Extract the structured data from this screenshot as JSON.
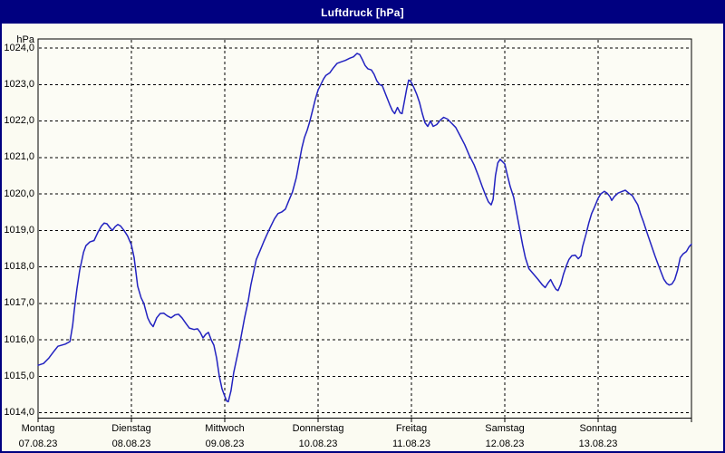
{
  "window": {
    "title": "Luftdruck [hPa]"
  },
  "colors": {
    "titlebar_bg": "#000080",
    "titlebar_text": "#ffffff",
    "window_bg": "#fbfbf2",
    "plot_bg": "#fcfcf5",
    "frame": "#000000",
    "grid": "#000000",
    "text": "#000000",
    "line": "#2222c0"
  },
  "chart_data": {
    "type": "line",
    "title": "Luftdruck [hPa]",
    "ylabel": "hPa",
    "ylim": [
      1014,
      1024
    ],
    "y_tick_step": 1,
    "y_ticks": [
      {
        "v": 1024,
        "label": "1024,0"
      },
      {
        "v": 1023,
        "label": "1023,0"
      },
      {
        "v": 1022,
        "label": "1022,0"
      },
      {
        "v": 1021,
        "label": "1021,0"
      },
      {
        "v": 1020,
        "label": "1020,0"
      },
      {
        "v": 1019,
        "label": "1019,0"
      },
      {
        "v": 1018,
        "label": "1018,0"
      },
      {
        "v": 1017,
        "label": "1017,0"
      },
      {
        "v": 1016,
        "label": "1016,0"
      },
      {
        "v": 1015,
        "label": "1015,0"
      },
      {
        "v": 1014,
        "label": "1014,0"
      }
    ],
    "x_days": [
      {
        "name": "Montag",
        "date": "07.08.23"
      },
      {
        "name": "Dienstag",
        "date": "08.08.23"
      },
      {
        "name": "Mittwoch",
        "date": "09.08.23"
      },
      {
        "name": "Donnerstag",
        "date": "10.08.23"
      },
      {
        "name": "Freitag",
        "date": "11.08.23"
      },
      {
        "name": "Samstag",
        "date": "12.08.23"
      },
      {
        "name": "Sonntag",
        "date": "13.08.23"
      }
    ],
    "hours_per_day": 24,
    "x_range_hours": [
      0,
      168
    ],
    "grid": "dashed",
    "legend": "none",
    "series": [
      {
        "name": "Luftdruck",
        "unit": "hPa",
        "color": "#2222c0",
        "points": [
          [
            0,
            1015.3
          ],
          [
            1.4,
            1015.35
          ],
          [
            2.8,
            1015.5
          ],
          [
            4.2,
            1015.7
          ],
          [
            5.1,
            1015.82
          ],
          [
            7,
            1015.88
          ],
          [
            8.2,
            1015.95
          ],
          [
            8.9,
            1016.4
          ],
          [
            9.3,
            1016.8
          ],
          [
            10,
            1017.4
          ],
          [
            10.7,
            1017.9
          ],
          [
            11.7,
            1018.4
          ],
          [
            12.3,
            1018.58
          ],
          [
            13.3,
            1018.68
          ],
          [
            14.4,
            1018.72
          ],
          [
            15.4,
            1018.95
          ],
          [
            16.3,
            1019.12
          ],
          [
            17,
            1019.2
          ],
          [
            17.7,
            1019.18
          ],
          [
            18.4,
            1019.08
          ],
          [
            19.1,
            1019.0
          ],
          [
            19.8,
            1019.1
          ],
          [
            20.5,
            1019.16
          ],
          [
            21.2,
            1019.12
          ],
          [
            22.1,
            1019.0
          ],
          [
            23,
            1018.85
          ],
          [
            24,
            1018.6
          ],
          [
            24.7,
            1018.25
          ],
          [
            25.6,
            1017.47
          ],
          [
            26.5,
            1017.15
          ],
          [
            27.2,
            1017.0
          ],
          [
            28.2,
            1016.6
          ],
          [
            28.9,
            1016.45
          ],
          [
            29.6,
            1016.36
          ],
          [
            30.5,
            1016.6
          ],
          [
            31.4,
            1016.72
          ],
          [
            32.3,
            1016.73
          ],
          [
            33.3,
            1016.65
          ],
          [
            34.2,
            1016.6
          ],
          [
            35.2,
            1016.68
          ],
          [
            36.1,
            1016.7
          ],
          [
            37,
            1016.6
          ],
          [
            38,
            1016.45
          ],
          [
            38.9,
            1016.32
          ],
          [
            40.1,
            1016.28
          ],
          [
            41,
            1016.3
          ],
          [
            41.7,
            1016.2
          ],
          [
            42.4,
            1016.05
          ],
          [
            43.1,
            1016.15
          ],
          [
            43.8,
            1016.2
          ],
          [
            44.5,
            1016.0
          ],
          [
            45.2,
            1015.85
          ],
          [
            45.9,
            1015.5
          ],
          [
            46.6,
            1015.0
          ],
          [
            47.3,
            1014.65
          ],
          [
            48,
            1014.45
          ],
          [
            48.5,
            1014.32
          ],
          [
            48.9,
            1014.3
          ],
          [
            49.6,
            1014.6
          ],
          [
            50.3,
            1015.1
          ],
          [
            51,
            1015.45
          ],
          [
            51.7,
            1015.8
          ],
          [
            52.4,
            1016.2
          ],
          [
            53.1,
            1016.6
          ],
          [
            54,
            1017.05
          ],
          [
            54.7,
            1017.5
          ],
          [
            55.4,
            1017.85
          ],
          [
            56.1,
            1018.2
          ],
          [
            57,
            1018.42
          ],
          [
            58,
            1018.68
          ],
          [
            58.9,
            1018.9
          ],
          [
            59.8,
            1019.1
          ],
          [
            60.8,
            1019.32
          ],
          [
            61.7,
            1019.46
          ],
          [
            62.6,
            1019.5
          ],
          [
            63.6,
            1019.58
          ],
          [
            64.5,
            1019.82
          ],
          [
            65.4,
            1020.05
          ],
          [
            66.4,
            1020.45
          ],
          [
            67.1,
            1020.85
          ],
          [
            67.8,
            1021.25
          ],
          [
            68.5,
            1021.55
          ],
          [
            69.2,
            1021.75
          ],
          [
            69.9,
            1022.0
          ],
          [
            70.6,
            1022.3
          ],
          [
            71.3,
            1022.6
          ],
          [
            72,
            1022.85
          ],
          [
            72.7,
            1023.0
          ],
          [
            73.4,
            1023.15
          ],
          [
            74,
            1023.25
          ],
          [
            75,
            1023.32
          ],
          [
            75.9,
            1023.45
          ],
          [
            76.9,
            1023.58
          ],
          [
            77.9,
            1023.62
          ],
          [
            79,
            1023.66
          ],
          [
            80.1,
            1023.72
          ],
          [
            81.1,
            1023.76
          ],
          [
            82,
            1023.85
          ],
          [
            82.7,
            1023.82
          ],
          [
            83.4,
            1023.68
          ],
          [
            84.1,
            1023.52
          ],
          [
            84.8,
            1023.43
          ],
          [
            85.7,
            1023.4
          ],
          [
            86.4,
            1023.28
          ],
          [
            87.1,
            1023.1
          ],
          [
            87.8,
            1023.0
          ],
          [
            88.5,
            1022.97
          ],
          [
            89.4,
            1022.72
          ],
          [
            90.4,
            1022.45
          ],
          [
            91.1,
            1022.28
          ],
          [
            91.7,
            1022.2
          ],
          [
            92.4,
            1022.37
          ],
          [
            93.1,
            1022.22
          ],
          [
            93.6,
            1022.2
          ],
          [
            94.3,
            1022.6
          ],
          [
            94.8,
            1022.9
          ],
          [
            95.3,
            1023.12
          ],
          [
            95.7,
            1023.1
          ],
          [
            96,
            1023.05
          ],
          [
            96.7,
            1022.9
          ],
          [
            97.4,
            1022.72
          ],
          [
            98.1,
            1022.5
          ],
          [
            98.8,
            1022.2
          ],
          [
            99.5,
            1021.95
          ],
          [
            100.2,
            1021.85
          ],
          [
            100.9,
            1022.0
          ],
          [
            101.6,
            1021.85
          ],
          [
            102.5,
            1021.9
          ],
          [
            103.4,
            1022.02
          ],
          [
            104.3,
            1022.1
          ],
          [
            105.3,
            1022.05
          ],
          [
            106.2,
            1021.95
          ],
          [
            107.4,
            1021.82
          ],
          [
            108.5,
            1021.6
          ],
          [
            109.7,
            1021.35
          ],
          [
            110.9,
            1021.05
          ],
          [
            112.1,
            1020.8
          ],
          [
            113.2,
            1020.5
          ],
          [
            114.2,
            1020.2
          ],
          [
            115.1,
            1019.95
          ],
          [
            115.8,
            1019.78
          ],
          [
            116.5,
            1019.7
          ],
          [
            117,
            1019.85
          ],
          [
            117.6,
            1020.5
          ],
          [
            118.2,
            1020.85
          ],
          [
            118.8,
            1020.95
          ],
          [
            120,
            1020.82
          ],
          [
            120.7,
            1020.5
          ],
          [
            121.4,
            1020.2
          ],
          [
            122.3,
            1019.9
          ],
          [
            123,
            1019.5
          ],
          [
            123.9,
            1019.0
          ],
          [
            124.6,
            1018.6
          ],
          [
            125.3,
            1018.25
          ],
          [
            126.2,
            1017.95
          ],
          [
            127.4,
            1017.8
          ],
          [
            128.6,
            1017.65
          ],
          [
            129.7,
            1017.5
          ],
          [
            130.4,
            1017.43
          ],
          [
            131.1,
            1017.55
          ],
          [
            131.8,
            1017.65
          ],
          [
            132.5,
            1017.5
          ],
          [
            133.2,
            1017.38
          ],
          [
            133.7,
            1017.35
          ],
          [
            134.4,
            1017.52
          ],
          [
            135.1,
            1017.8
          ],
          [
            135.8,
            1018.02
          ],
          [
            136.5,
            1018.2
          ],
          [
            137.2,
            1018.3
          ],
          [
            138.1,
            1018.32
          ],
          [
            138.9,
            1018.22
          ],
          [
            139.6,
            1018.3
          ],
          [
            140,
            1018.55
          ],
          [
            140.9,
            1018.9
          ],
          [
            141.6,
            1019.2
          ],
          [
            142.3,
            1019.45
          ],
          [
            143,
            1019.62
          ],
          [
            143.7,
            1019.8
          ],
          [
            144,
            1019.88
          ],
          [
            144.7,
            1020.0
          ],
          [
            145.6,
            1020.07
          ],
          [
            146.3,
            1020.02
          ],
          [
            147,
            1019.93
          ],
          [
            147.5,
            1019.82
          ],
          [
            148.2,
            1019.93
          ],
          [
            149.1,
            1020.02
          ],
          [
            150,
            1020.06
          ],
          [
            151,
            1020.1
          ],
          [
            151.9,
            1020.02
          ],
          [
            152.8,
            1019.95
          ],
          [
            153.5,
            1019.82
          ],
          [
            154.2,
            1019.7
          ],
          [
            154.9,
            1019.45
          ],
          [
            155.6,
            1019.25
          ],
          [
            156.3,
            1019.02
          ],
          [
            157,
            1018.8
          ],
          [
            157.9,
            1018.52
          ],
          [
            158.6,
            1018.3
          ],
          [
            159.3,
            1018.1
          ],
          [
            160.2,
            1017.85
          ],
          [
            160.9,
            1017.66
          ],
          [
            161.6,
            1017.55
          ],
          [
            162.3,
            1017.5
          ],
          [
            163,
            1017.53
          ],
          [
            163.7,
            1017.65
          ],
          [
            164.4,
            1017.9
          ],
          [
            165.1,
            1018.25
          ],
          [
            165.8,
            1018.35
          ],
          [
            166.7,
            1018.42
          ],
          [
            167.4,
            1018.55
          ],
          [
            168,
            1018.62
          ]
        ]
      }
    ]
  }
}
